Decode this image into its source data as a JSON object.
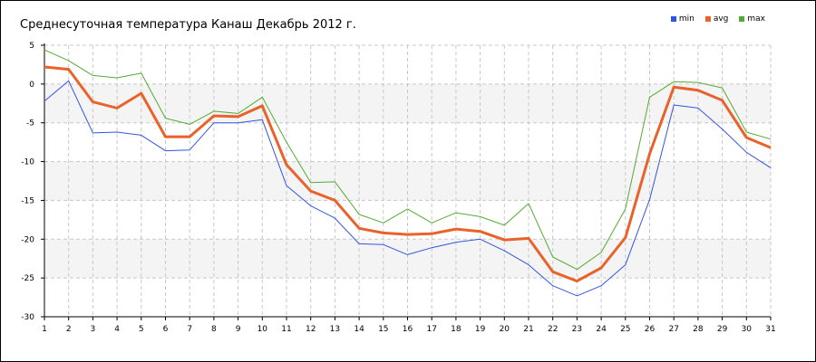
{
  "chart_data": {
    "type": "line",
    "title": "Среднесуточная температура Канаш  Декабрь 2012 г.",
    "xlabel": "",
    "ylabel": "",
    "x": [
      1,
      2,
      3,
      4,
      5,
      6,
      7,
      8,
      9,
      10,
      11,
      12,
      13,
      14,
      15,
      16,
      17,
      18,
      19,
      20,
      21,
      22,
      23,
      24,
      25,
      26,
      27,
      28,
      29,
      30,
      31
    ],
    "ylim": [
      -30,
      5
    ],
    "yticks": [
      5,
      0,
      -5,
      -10,
      -15,
      -20,
      -25,
      -30
    ],
    "grid": true,
    "legend_position": "top-right",
    "series": [
      {
        "name": "min",
        "color": "#3355dd",
        "values": [
          -2.2,
          0.4,
          -6.3,
          -6.2,
          -6.6,
          -8.6,
          -8.5,
          -5.0,
          -5.0,
          -4.6,
          -13.1,
          -15.7,
          -17.3,
          -20.6,
          -20.7,
          -22.0,
          -21.1,
          -20.4,
          -20.0,
          -21.5,
          -23.3,
          -26.0,
          -27.3,
          -26.0,
          -23.3,
          -14.9,
          -2.7,
          -3.1,
          -5.8,
          -8.8,
          -10.8
        ]
      },
      {
        "name": "avg",
        "color": "#e8622a",
        "values": [
          2.2,
          1.9,
          -2.3,
          -3.1,
          -1.2,
          -6.8,
          -6.8,
          -4.1,
          -4.2,
          -2.8,
          -10.4,
          -13.8,
          -15.0,
          -18.6,
          -19.2,
          -19.4,
          -19.3,
          -18.7,
          -19.0,
          -20.1,
          -19.9,
          -24.2,
          -25.4,
          -23.7,
          -19.8,
          -9.0,
          -0.4,
          -0.8,
          -2.1,
          -6.9,
          -8.2
        ]
      },
      {
        "name": "max",
        "color": "#55aa33",
        "values": [
          4.4,
          3.0,
          1.1,
          0.8,
          1.4,
          -4.4,
          -5.2,
          -3.5,
          -3.8,
          -1.7,
          -7.5,
          -12.7,
          -12.6,
          -16.8,
          -17.9,
          -16.1,
          -17.9,
          -16.6,
          -17.1,
          -18.2,
          -15.4,
          -22.3,
          -23.9,
          -21.7,
          -16.1,
          -1.7,
          0.3,
          0.2,
          -0.5,
          -6.2,
          -7.1
        ]
      }
    ]
  }
}
